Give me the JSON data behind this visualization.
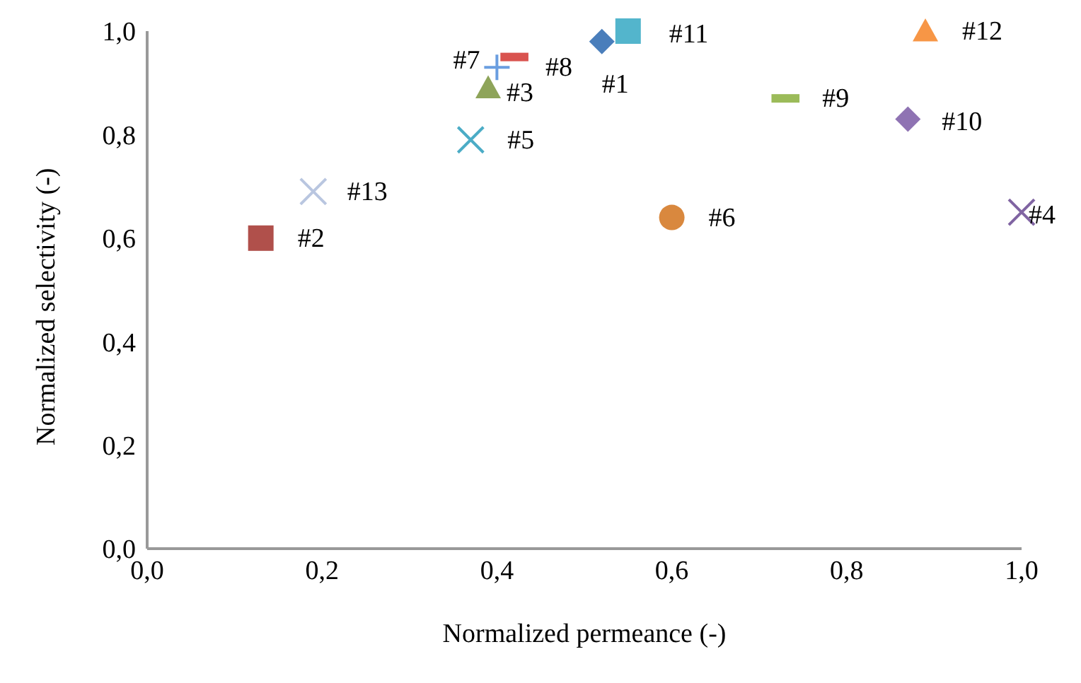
{
  "chart_data": {
    "type": "scatter",
    "xlabel": "Normalized permeance (-)",
    "ylabel": "Normalized selectivity (-)",
    "xlim": [
      0,
      1
    ],
    "ylim": [
      0,
      1
    ],
    "xticks": [
      {
        "value": 0,
        "label": "0,0"
      },
      {
        "value": 0.2,
        "label": "0,2"
      },
      {
        "value": 0.4,
        "label": "0,4"
      },
      {
        "value": 0.6,
        "label": "0,6"
      },
      {
        "value": 0.8,
        "label": "0,8"
      },
      {
        "value": 1,
        "label": "1,0"
      }
    ],
    "yticks": [
      {
        "value": 0,
        "label": "0,0"
      },
      {
        "value": 0.2,
        "label": "0,2"
      },
      {
        "value": 0.4,
        "label": "0,4"
      },
      {
        "value": 0.6,
        "label": "0,6"
      },
      {
        "value": 0.8,
        "label": "0,8"
      },
      {
        "value": 1,
        "label": "1,0"
      }
    ],
    "grid": false,
    "legend": false,
    "series": [
      {
        "name": "#1",
        "color": "#4a7ebb",
        "marker": "diamond",
        "x": [
          0.52
        ],
        "values": [
          0.98
        ]
      },
      {
        "name": "#2",
        "color": "#b0504b",
        "marker": "square",
        "x": [
          0.13
        ],
        "values": [
          0.6
        ]
      },
      {
        "name": "#3",
        "color": "#8ea45a",
        "marker": "triangle",
        "x": [
          0.39
        ],
        "values": [
          0.89
        ]
      },
      {
        "name": "#4",
        "color": "#8064a2",
        "marker": "cross",
        "x": [
          1.0
        ],
        "values": [
          0.65
        ]
      },
      {
        "name": "#5",
        "color": "#4bacc6",
        "marker": "cross",
        "x": [
          0.37
        ],
        "values": [
          0.79
        ]
      },
      {
        "name": "#6",
        "color": "#d9883e",
        "marker": "circle",
        "x": [
          0.6
        ],
        "values": [
          0.64
        ]
      },
      {
        "name": "#7",
        "color": "#6a9ee0",
        "marker": "plus",
        "x": [
          0.4
        ],
        "values": [
          0.93
        ]
      },
      {
        "name": "#8",
        "color": "#d9534f",
        "x": [
          0.42
        ],
        "values": [
          0.95
        ]
      },
      {
        "name": "#9",
        "color": "#9bbb59",
        "x": [
          0.73
        ],
        "values": [
          0.87
        ]
      },
      {
        "name": "#10",
        "color": "#8f73b3",
        "marker": "diamond",
        "x": [
          0.87
        ],
        "values": [
          0.83
        ]
      },
      {
        "name": "#11",
        "color": "#53b5cc",
        "marker": "square",
        "x": [
          0.55
        ],
        "values": [
          1.0
        ]
      },
      {
        "name": "#12",
        "color": "#f79646",
        "marker": "triangle",
        "x": [
          0.89
        ],
        "values": [
          1.0
        ]
      },
      {
        "name": "#13",
        "color": "#b9c6e0",
        "marker": "cross",
        "x": [
          0.19
        ],
        "values": [
          0.69
        ]
      }
    ]
  }
}
